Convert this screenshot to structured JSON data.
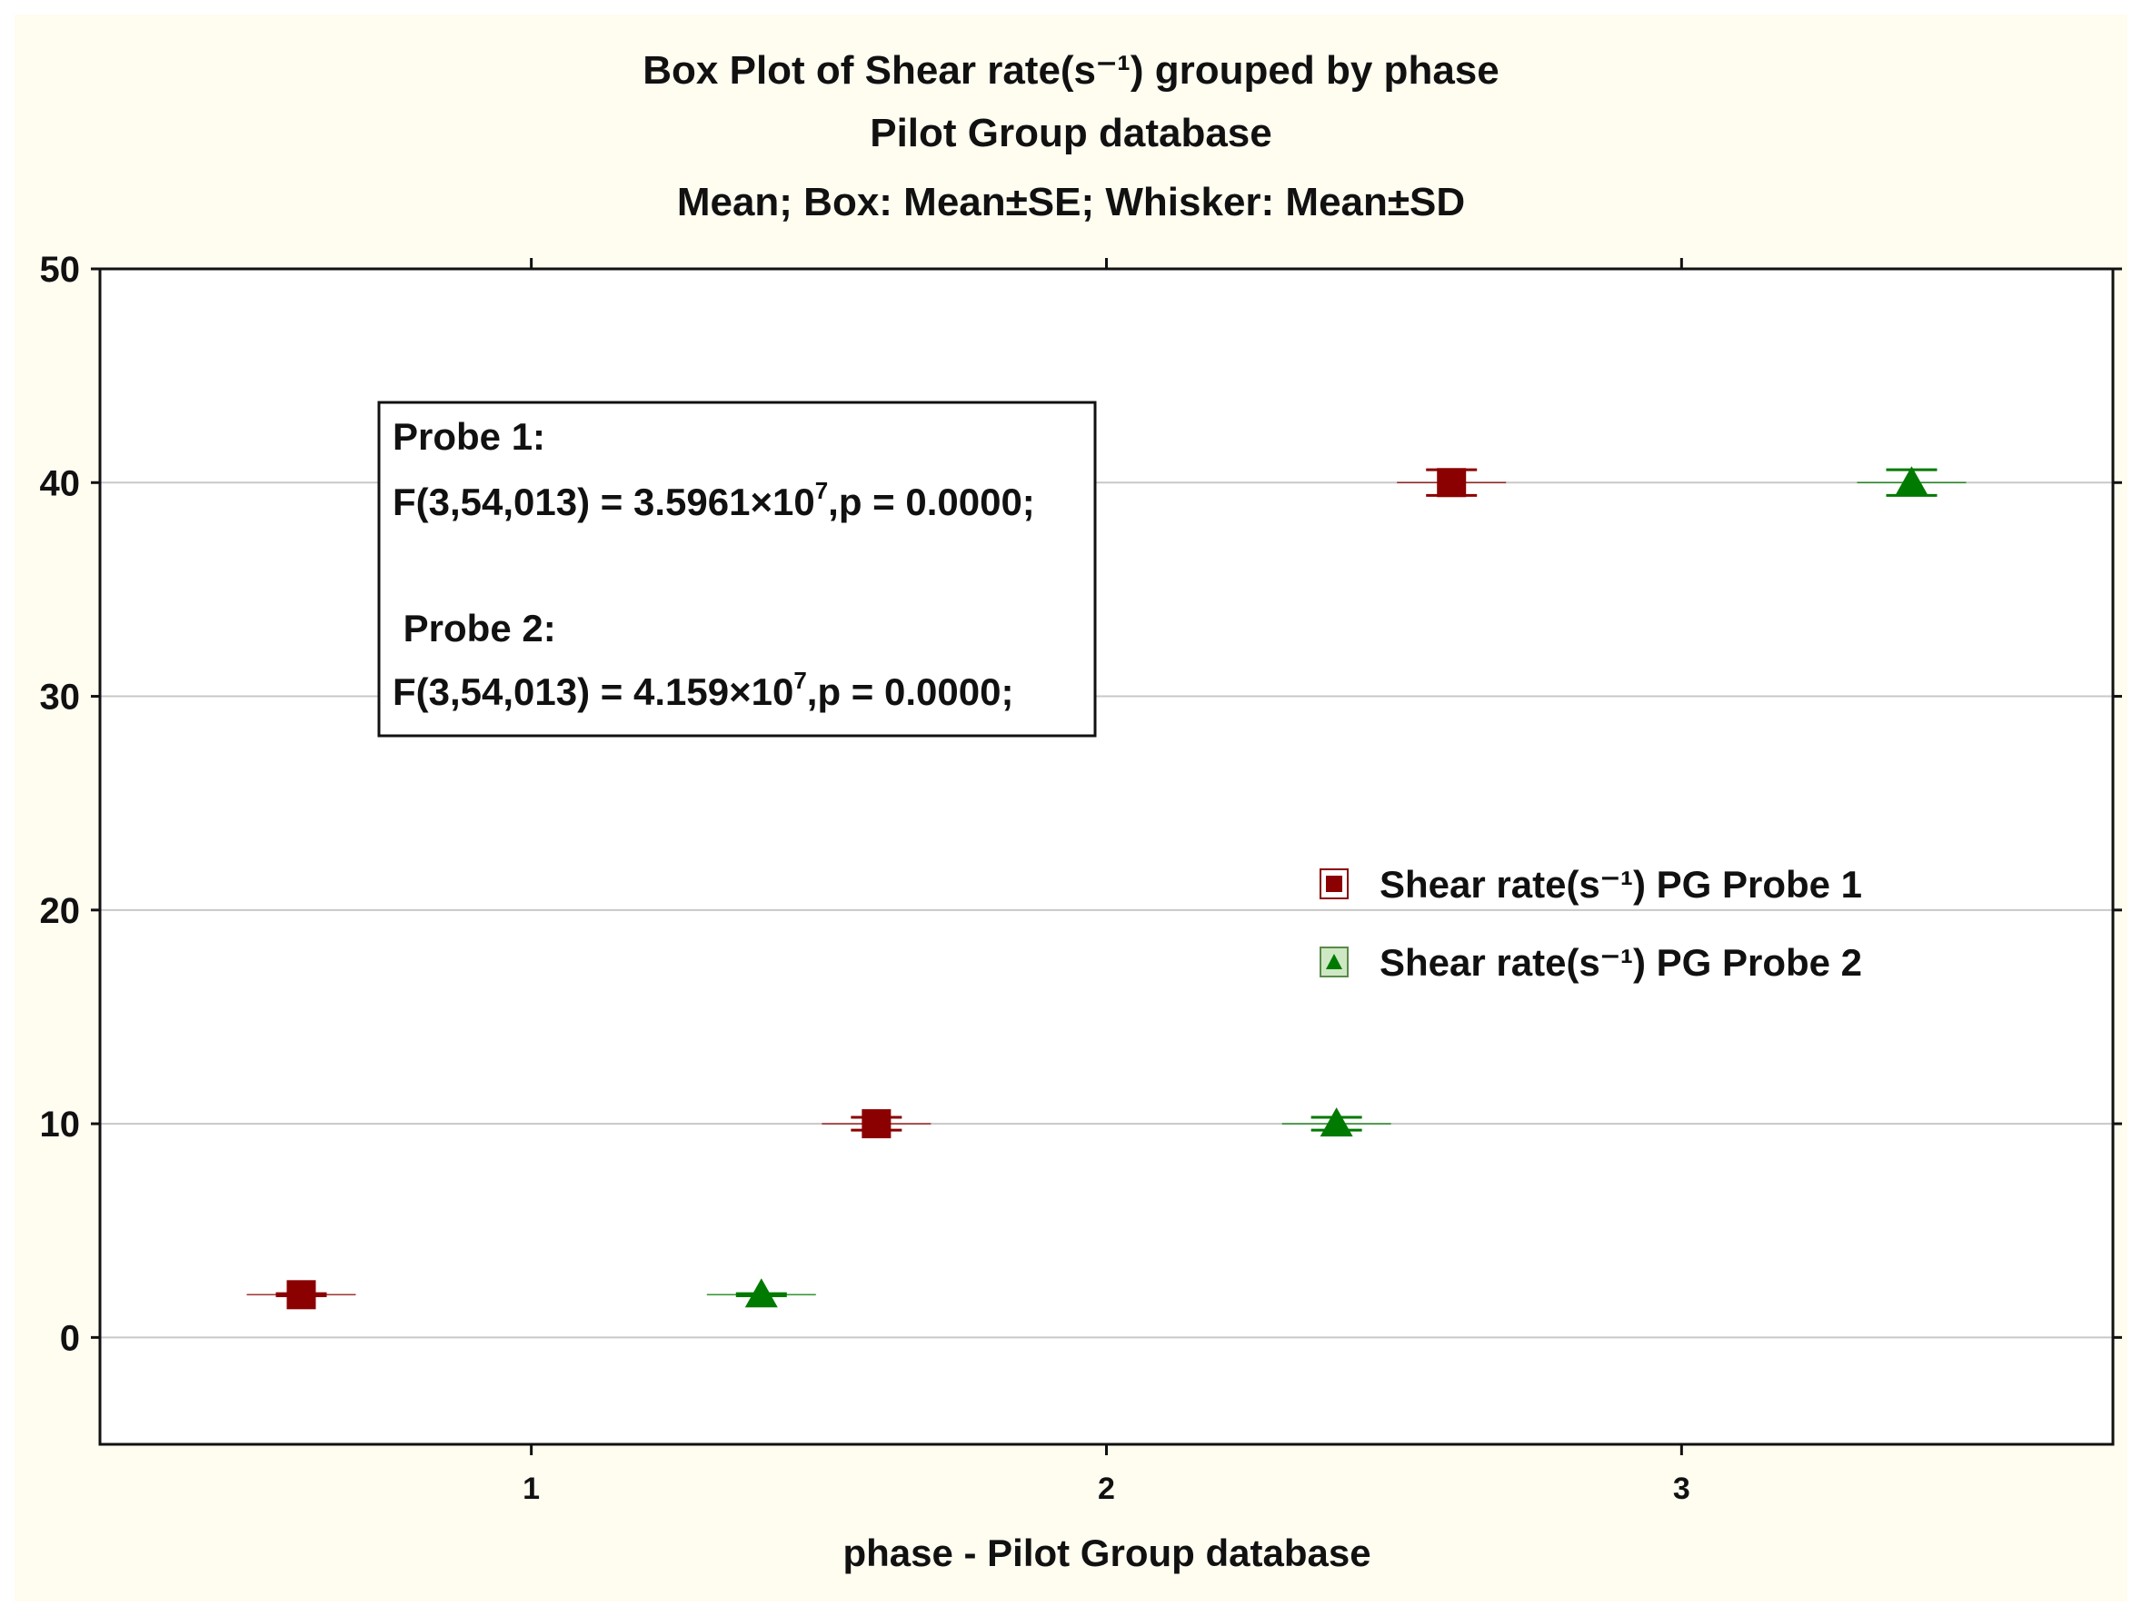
{
  "chart_data": {
    "type": "box",
    "title": "Box Plot of Shear rate(s⁻¹) grouped by  phase",
    "subtitle": "Pilot Group database",
    "description": "Mean; Box: Mean±SE; Whisker: Mean±SD",
    "xlabel": "phase - Pilot Group database",
    "ylabel": "",
    "categories": [
      "1",
      "2",
      "3"
    ],
    "ylim": [
      -5,
      50
    ],
    "yticks": [
      0,
      10,
      20,
      30,
      40,
      50
    ],
    "grid": true,
    "legend_position": "right",
    "series": [
      {
        "name": "Shear rate(s⁻¹) PG Probe 1",
        "marker": "square",
        "color": "#8b0000",
        "mean": [
          2,
          10,
          40
        ],
        "sd": [
          0.05,
          0.3,
          0.6
        ]
      },
      {
        "name": "Shear rate(s⁻¹) PG Probe 2",
        "marker": "triangle",
        "color": "#007a00",
        "mean": [
          2,
          10,
          40
        ],
        "sd": [
          0.05,
          0.3,
          0.6
        ]
      }
    ],
    "annotation": {
      "probe1_label": "Probe 1:",
      "probe1_stat": "F(3,54,013) = 3.5961×10",
      "probe1_exp": "7",
      "probe1_p": ",p = 0.0000;",
      "probe2_label": " Probe 2:",
      "probe2_stat": "F(3,54,013) = 4.159×10",
      "probe2_exp": "7",
      "probe2_p": ",p = 0.0000;"
    }
  }
}
